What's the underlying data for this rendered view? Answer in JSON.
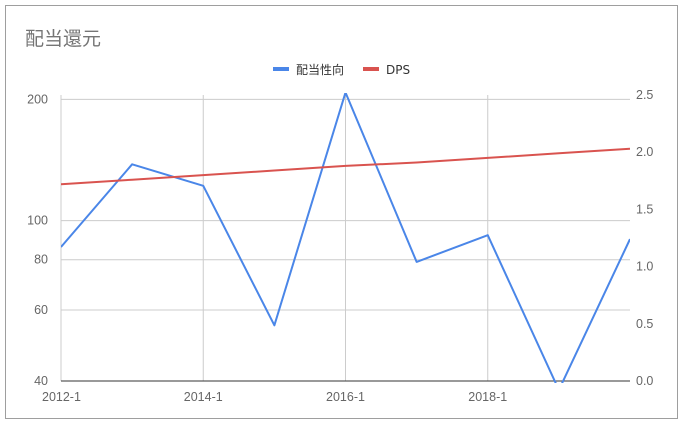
{
  "chart_data": {
    "type": "line",
    "title": "配当還元",
    "legend_position": "top",
    "grid": true,
    "x_tick_labels": [
      "2012-1",
      "2014-1",
      "2016-1",
      "2018-1"
    ],
    "x": [
      "2012-1",
      "2013-1",
      "2014-1",
      "2015-1",
      "2016-1",
      "2017-1",
      "2018-1",
      "2019-1",
      "2020-1"
    ],
    "left_axis": {
      "scale": "log",
      "ticks": [
        40,
        60,
        80,
        100,
        200
      ],
      "tick_labels": [
        "40",
        "60",
        "80",
        "100",
        "200"
      ],
      "range": [
        40,
        205
      ]
    },
    "right_axis": {
      "scale": "linear",
      "ticks": [
        0.0,
        0.5,
        1.0,
        1.5,
        2.0,
        2.5
      ],
      "tick_labels": [
        "0.0",
        "0.5",
        "1.0",
        "1.5",
        "2.0",
        "2.5"
      ],
      "range": [
        0,
        2.5
      ]
    },
    "series": [
      {
        "name": "配当性向",
        "axis": "left",
        "color": "#4a86e8",
        "values": [
          86,
          138,
          122,
          55,
          208,
          79,
          92,
          38,
          90
        ]
      },
      {
        "name": "DPS",
        "axis": "right",
        "color": "#d9534f",
        "values": [
          1.72,
          1.76,
          1.8,
          1.84,
          1.88,
          1.91,
          1.95,
          1.99,
          2.03
        ]
      }
    ]
  }
}
